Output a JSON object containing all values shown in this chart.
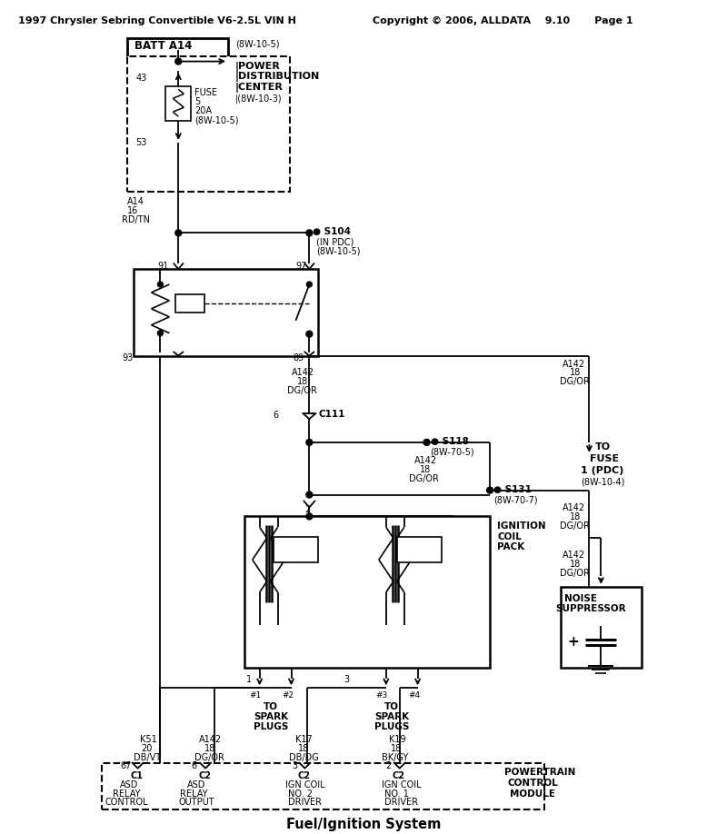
{
  "title_left": "1997 Chrysler Sebring Convertible V6-2.5L VIN H",
  "title_right": "Copyright © 2006, ALLDATA    9.10       Page 1",
  "footer": "Fuel/Ignition System",
  "bg_color": "#ffffff"
}
